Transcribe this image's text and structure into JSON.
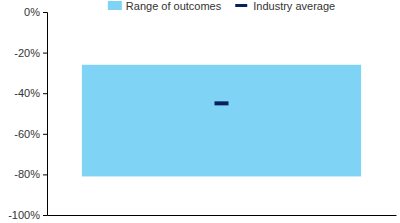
{
  "chart_data": {
    "type": "range",
    "categories": [
      null
    ],
    "series": [
      {
        "name": "Range of outcomes",
        "type": "range",
        "color": "#7fd3f5",
        "low": [
          -81
        ],
        "high": [
          -26
        ]
      },
      {
        "name": "Industry average",
        "type": "marker",
        "marker": "dash",
        "color": "#0b1f5e",
        "values": [
          -45
        ]
      }
    ],
    "ylim": [
      -100,
      0
    ],
    "yticks": [
      {
        "value": 0,
        "label": "0%"
      },
      {
        "value": -20,
        "label": "-20%"
      },
      {
        "value": -40,
        "label": "-40%"
      },
      {
        "value": -60,
        "label": "-60%"
      },
      {
        "value": -80,
        "label": "-80%"
      },
      {
        "value": -100,
        "label": "-100%"
      }
    ],
    "grid": false,
    "legend": "top",
    "tick_labels": "y"
  }
}
